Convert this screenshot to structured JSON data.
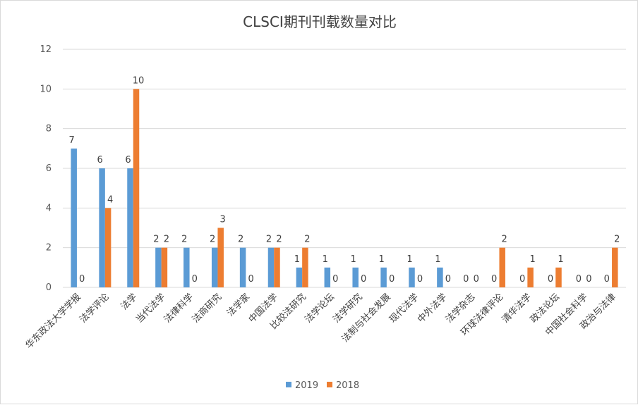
{
  "chart_data": {
    "type": "bar",
    "title": "CLSCI期刊刊载数量对比",
    "xlabel": "",
    "ylabel": "",
    "ylim": [
      0,
      12
    ],
    "yticks": [
      0,
      2,
      4,
      6,
      8,
      10,
      12
    ],
    "grid": true,
    "legend_position": "bottom",
    "categories": [
      "华东政法大学学报",
      "法学评论",
      "法学",
      "当代法学",
      "法律科学",
      "法商研究",
      "法学家",
      "中国法学",
      "比较法研究",
      "法学论坛",
      "法学研究",
      "法制与社会发展",
      "现代法学",
      "中外法学",
      "法学杂志",
      "环球法律评论",
      "清华法学",
      "政法论坛",
      "中国社会科学",
      "政治与法律"
    ],
    "series": [
      {
        "name": "2019",
        "color": "#5b9bd5",
        "values": [
          7,
          6,
          6,
          2,
          2,
          2,
          2,
          2,
          1,
          1,
          1,
          1,
          1,
          1,
          0,
          0,
          0,
          0,
          0,
          0
        ]
      },
      {
        "name": "2018",
        "color": "#ed7d31",
        "values": [
          0,
          4,
          10,
          2,
          0,
          3,
          0,
          2,
          2,
          0,
          0,
          0,
          0,
          0,
          0,
          2,
          1,
          1,
          0,
          2
        ]
      }
    ]
  }
}
